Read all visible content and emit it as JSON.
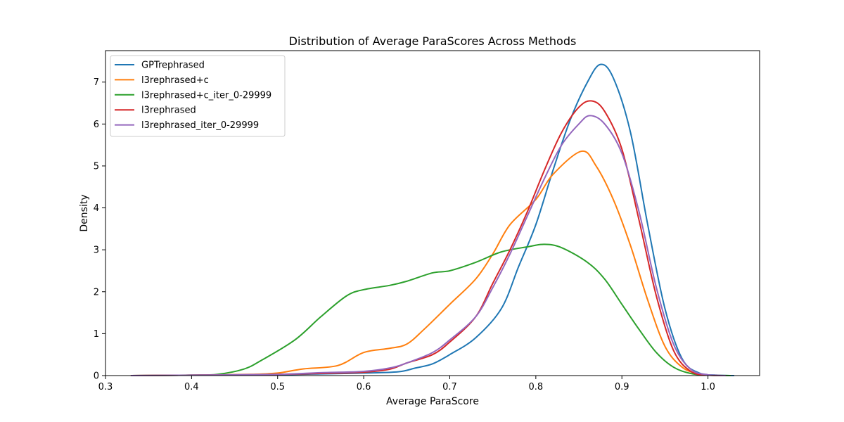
{
  "chart_data": {
    "type": "line",
    "title": "Distribution of Average ParaScores Across Methods",
    "xlabel": "Average ParaScore",
    "ylabel": "Density",
    "xlim": [
      0.3,
      1.06
    ],
    "ylim": [
      0,
      7.75
    ],
    "xticks": [
      0.3,
      0.4,
      0.5,
      0.6,
      0.7,
      0.8,
      0.9,
      1.0
    ],
    "xtick_labels": [
      "0.3",
      "0.4",
      "0.5",
      "0.6",
      "0.7",
      "0.8",
      "0.9",
      "1.0"
    ],
    "yticks": [
      0,
      1,
      2,
      3,
      4,
      5,
      6,
      7
    ],
    "ytick_labels": [
      "0",
      "1",
      "2",
      "3",
      "4",
      "5",
      "6",
      "7"
    ],
    "grid": false,
    "legend_position": "top-left",
    "series": [
      {
        "name": "GPTrephrased",
        "color": "#1f77b4",
        "points": [
          [
            0.33,
            0
          ],
          [
            0.4,
            0.01
          ],
          [
            0.5,
            0.02
          ],
          [
            0.55,
            0.04
          ],
          [
            0.6,
            0.06
          ],
          [
            0.64,
            0.09
          ],
          [
            0.66,
            0.18
          ],
          [
            0.68,
            0.28
          ],
          [
            0.7,
            0.5
          ],
          [
            0.73,
            0.9
          ],
          [
            0.76,
            1.6
          ],
          [
            0.78,
            2.6
          ],
          [
            0.8,
            3.6
          ],
          [
            0.82,
            4.9
          ],
          [
            0.84,
            6.1
          ],
          [
            0.86,
            7.0
          ],
          [
            0.875,
            7.42
          ],
          [
            0.89,
            7.1
          ],
          [
            0.91,
            5.8
          ],
          [
            0.93,
            3.6
          ],
          [
            0.95,
            1.6
          ],
          [
            0.97,
            0.4
          ],
          [
            0.99,
            0.06
          ],
          [
            1.01,
            0.01
          ],
          [
            1.03,
            0
          ]
        ]
      },
      {
        "name": "l3rephrased+c",
        "color": "#ff7f0e",
        "points": [
          [
            0.33,
            0
          ],
          [
            0.4,
            0.01
          ],
          [
            0.47,
            0.03
          ],
          [
            0.5,
            0.06
          ],
          [
            0.53,
            0.16
          ],
          [
            0.57,
            0.24
          ],
          [
            0.6,
            0.55
          ],
          [
            0.63,
            0.65
          ],
          [
            0.65,
            0.75
          ],
          [
            0.67,
            1.1
          ],
          [
            0.7,
            1.7
          ],
          [
            0.73,
            2.3
          ],
          [
            0.75,
            2.9
          ],
          [
            0.77,
            3.6
          ],
          [
            0.8,
            4.2
          ],
          [
            0.82,
            4.8
          ],
          [
            0.853,
            5.35
          ],
          [
            0.87,
            5.0
          ],
          [
            0.89,
            4.2
          ],
          [
            0.91,
            3.1
          ],
          [
            0.93,
            1.8
          ],
          [
            0.95,
            0.7
          ],
          [
            0.97,
            0.2
          ],
          [
            0.99,
            0.04
          ],
          [
            1.01,
            0
          ]
        ]
      },
      {
        "name": "l3rephrased+c_iter_0-29999",
        "color": "#2ca02c",
        "points": [
          [
            0.33,
            0
          ],
          [
            0.4,
            0.01
          ],
          [
            0.43,
            0.03
          ],
          [
            0.46,
            0.15
          ],
          [
            0.48,
            0.35
          ],
          [
            0.52,
            0.85
          ],
          [
            0.55,
            1.4
          ],
          [
            0.58,
            1.9
          ],
          [
            0.6,
            2.05
          ],
          [
            0.63,
            2.15
          ],
          [
            0.65,
            2.25
          ],
          [
            0.68,
            2.45
          ],
          [
            0.7,
            2.5
          ],
          [
            0.73,
            2.7
          ],
          [
            0.76,
            2.95
          ],
          [
            0.79,
            3.07
          ],
          [
            0.81,
            3.13
          ],
          [
            0.83,
            3.05
          ],
          [
            0.86,
            2.7
          ],
          [
            0.88,
            2.3
          ],
          [
            0.9,
            1.7
          ],
          [
            0.92,
            1.1
          ],
          [
            0.94,
            0.55
          ],
          [
            0.96,
            0.2
          ],
          [
            0.98,
            0.05
          ],
          [
            1.0,
            0.01
          ],
          [
            1.026,
            0
          ]
        ]
      },
      {
        "name": "l3rephrased",
        "color": "#d62728",
        "points": [
          [
            0.33,
            0
          ],
          [
            0.4,
            0.01
          ],
          [
            0.5,
            0.03
          ],
          [
            0.55,
            0.05
          ],
          [
            0.6,
            0.08
          ],
          [
            0.63,
            0.15
          ],
          [
            0.65,
            0.3
          ],
          [
            0.68,
            0.5
          ],
          [
            0.7,
            0.8
          ],
          [
            0.73,
            1.4
          ],
          [
            0.75,
            2.2
          ],
          [
            0.77,
            3.0
          ],
          [
            0.79,
            3.9
          ],
          [
            0.81,
            4.9
          ],
          [
            0.83,
            5.8
          ],
          [
            0.85,
            6.4
          ],
          [
            0.865,
            6.55
          ],
          [
            0.88,
            6.3
          ],
          [
            0.9,
            5.4
          ],
          [
            0.92,
            3.7
          ],
          [
            0.94,
            1.9
          ],
          [
            0.96,
            0.6
          ],
          [
            0.98,
            0.1
          ],
          [
            1.0,
            0.01
          ],
          [
            1.02,
            0
          ]
        ]
      },
      {
        "name": "l3rephrased_iter_0-29999",
        "color": "#9467bd",
        "points": [
          [
            0.33,
            0
          ],
          [
            0.4,
            0.01
          ],
          [
            0.5,
            0.03
          ],
          [
            0.55,
            0.07
          ],
          [
            0.6,
            0.1
          ],
          [
            0.63,
            0.18
          ],
          [
            0.65,
            0.3
          ],
          [
            0.68,
            0.55
          ],
          [
            0.7,
            0.85
          ],
          [
            0.73,
            1.4
          ],
          [
            0.75,
            2.1
          ],
          [
            0.77,
            2.9
          ],
          [
            0.79,
            3.8
          ],
          [
            0.81,
            4.7
          ],
          [
            0.83,
            5.5
          ],
          [
            0.85,
            6.0
          ],
          [
            0.863,
            6.2
          ],
          [
            0.88,
            6.0
          ],
          [
            0.9,
            5.3
          ],
          [
            0.92,
            3.9
          ],
          [
            0.94,
            2.1
          ],
          [
            0.96,
            0.75
          ],
          [
            0.98,
            0.15
          ],
          [
            1.0,
            0.02
          ],
          [
            1.02,
            0
          ]
        ]
      }
    ]
  }
}
